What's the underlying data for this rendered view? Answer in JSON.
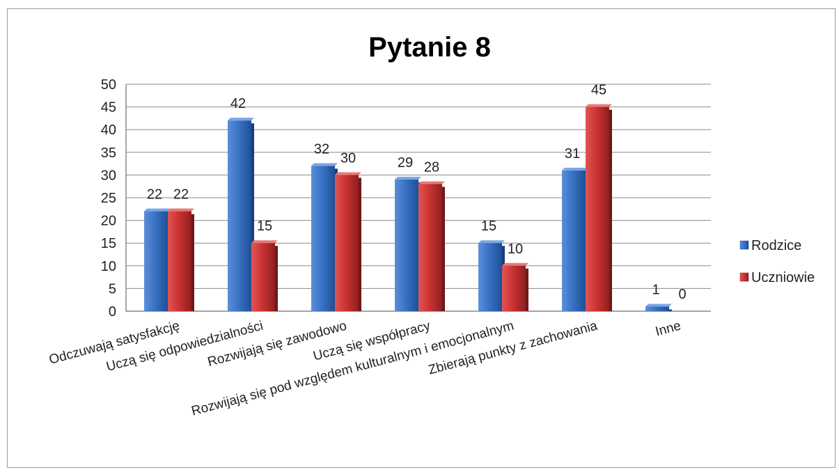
{
  "chart_data": {
    "type": "bar",
    "title": "Pytanie 8",
    "categories": [
      "Odczuwają satysfakcję",
      "Uczą się odpowiedzialności",
      "Rozwijają się zawodowo",
      "Uczą się współpracy",
      "Rozwijają się pod względem kulturalnym i emocjonalnym",
      "Zbierają punkty z zachowania",
      "Inne"
    ],
    "series": [
      {
        "name": "Rodzice",
        "values": [
          22,
          42,
          32,
          29,
          15,
          31,
          1
        ],
        "color": "#3a72c4"
      },
      {
        "name": "Uczniowie",
        "values": [
          22,
          15,
          30,
          28,
          10,
          45,
          0
        ],
        "color": "#cc3333"
      }
    ],
    "ylim": [
      0,
      50
    ],
    "yticks": [
      0,
      5,
      10,
      15,
      20,
      25,
      30,
      35,
      40,
      45,
      50
    ],
    "grid": true,
    "legend_position": "right",
    "xlabel": "",
    "ylabel": ""
  }
}
